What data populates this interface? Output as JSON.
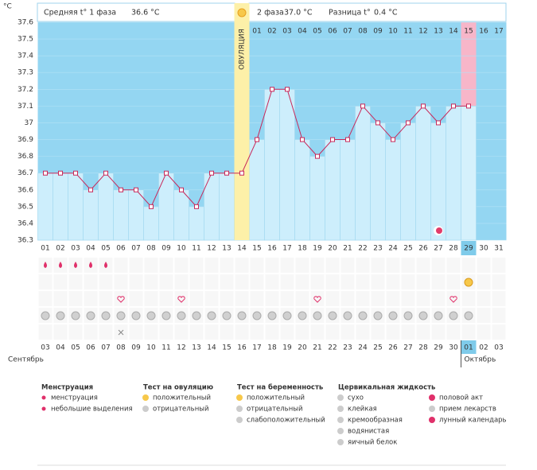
{
  "header": {
    "phase1_label": "Средняя t° 1 фаза",
    "phase1_value": "36.6 °C",
    "phase2_label": "2 фаза",
    "phase2_value": "37.0 °C",
    "diff_label": "Разница t°",
    "diff_value": "0.4 °C"
  },
  "chart_data": {
    "type": "line",
    "y_label": "°C",
    "ovulation_label": "ОВУЛЯЦИЯ",
    "ovulation_day": 14,
    "today_index": 28,
    "categories": [
      "01",
      "02",
      "03",
      "04",
      "05",
      "06",
      "07",
      "08",
      "09",
      "10",
      "11",
      "12",
      "13",
      "14",
      "15",
      "16",
      "17",
      "18",
      "19",
      "20",
      "21",
      "22",
      "23",
      "24",
      "25",
      "26",
      "27",
      "28",
      "29",
      "30",
      "31"
    ],
    "values": [
      36.7,
      36.7,
      36.7,
      36.6,
      36.7,
      36.6,
      36.6,
      36.5,
      36.7,
      36.6,
      36.5,
      36.7,
      36.7,
      36.7,
      36.9,
      37.2,
      37.2,
      36.9,
      36.8,
      36.9,
      36.9,
      37.1,
      37.0,
      36.9,
      37.0,
      37.1,
      37.0,
      37.1,
      37.1,
      null,
      null
    ],
    "color": "#c8285a",
    "phase2_days": [
      "01",
      "02",
      "03",
      "04",
      "05",
      "06",
      "07",
      "08",
      "09",
      "10",
      "11",
      "12",
      "13",
      "14",
      "15",
      "16",
      "17"
    ],
    "ylim": [
      36.3,
      37.6
    ],
    "yticks": [
      37.6,
      37.5,
      37.4,
      37.3,
      37.2,
      37.1,
      37,
      36.9,
      36.8,
      36.7,
      36.6,
      36.5,
      36.4,
      36.3
    ]
  },
  "symbol_rows": [
    {
      "days": [
        1,
        2,
        3,
        4,
        5
      ]
    },
    {
      "days": [
        29
      ]
    },
    {
      "days": [
        6,
        10,
        19,
        28
      ]
    },
    {
      "days": [
        1,
        2,
        3,
        4,
        5,
        6,
        7,
        8,
        9,
        10,
        11,
        12,
        13,
        14,
        15,
        16,
        17,
        18,
        19,
        20,
        21,
        22,
        23,
        24,
        25,
        26,
        27,
        28,
        29
      ]
    },
    {
      "days": [
        6
      ]
    }
  ],
  "calendar": {
    "dates": [
      "03",
      "04",
      "05",
      "06",
      "07",
      "08",
      "09",
      "10",
      "11",
      "12",
      "13",
      "14",
      "15",
      "16",
      "17",
      "18",
      "19",
      "20",
      "21",
      "22",
      "23",
      "24",
      "25",
      "26",
      "27",
      "28",
      "29",
      "30",
      "01",
      "02",
      "03"
    ],
    "weekends": [
      4,
      5,
      11,
      12,
      18,
      19,
      25,
      26
    ],
    "month1": "Сентябрь",
    "month2": "Октябрь"
  },
  "legend": [
    {
      "title": "Менструация",
      "items": [
        "менструация",
        "небольшие выделения"
      ]
    },
    {
      "title": "Тест на овуляцию",
      "items": [
        "положительный",
        "отрицательный"
      ]
    },
    {
      "title": "Тест на беременность",
      "items": [
        "положительный",
        "отрицательный",
        "слабоположительный"
      ]
    },
    {
      "title": "Цервикальная жидкость",
      "items": [
        "сухо",
        "клейкая",
        "кремообразная",
        "водянистая",
        "яичный белок"
      ]
    },
    {
      "title": "",
      "items": [
        "половой акт",
        "прием лекарств",
        "лунный календарь"
      ]
    }
  ]
}
